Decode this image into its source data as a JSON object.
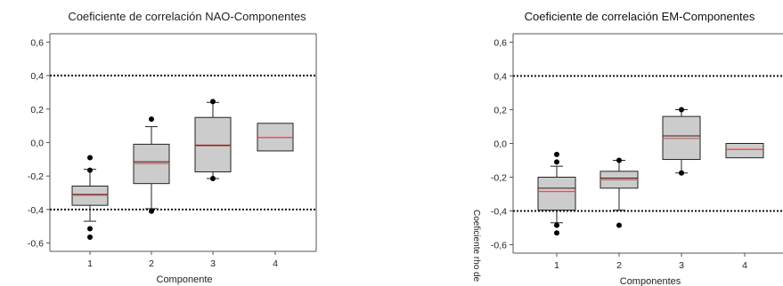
{
  "chart_data": [
    {
      "type": "box",
      "title": "Coeficiente de correlación NAO-Componentes",
      "xlabel": "Componente",
      "ylabel": "",
      "ylim": [
        -0.65,
        0.65
      ],
      "yticks": [
        "0,6",
        "0,4",
        "0,2",
        "0,0",
        "-0,2",
        "-0,4",
        "-0,6"
      ],
      "categories": [
        "1",
        "2",
        "3",
        "4"
      ],
      "reference_lines": [
        0.4,
        -0.4
      ],
      "boxes": [
        {
          "q1": -0.375,
          "median": -0.31,
          "mean": -0.315,
          "q3": -0.26,
          "whisker_low": -0.47,
          "whisker_high": -0.16,
          "outliers": [
            -0.09,
            -0.165,
            -0.515,
            -0.565
          ]
        },
        {
          "q1": -0.245,
          "median": -0.115,
          "mean": -0.125,
          "q3": -0.01,
          "whisker_low": -0.395,
          "whisker_high": 0.095,
          "outliers": [
            0.14,
            -0.41
          ]
        },
        {
          "q1": -0.175,
          "median": -0.015,
          "mean": -0.02,
          "q3": 0.15,
          "whisker_low": -0.215,
          "whisker_high": 0.24,
          "outliers": [
            0.245,
            -0.215
          ]
        },
        {
          "q1": -0.05,
          "median": 0.03,
          "mean": 0.03,
          "q3": 0.115,
          "whisker_low": null,
          "whisker_high": null,
          "outliers": []
        }
      ]
    },
    {
      "type": "box",
      "title": "Coeficiente de correlación EM-Componentes",
      "xlabel": "Componentes",
      "ylabel": "Coeficiente rho de",
      "ylim": [
        -0.65,
        0.65
      ],
      "yticks": [
        "0,6",
        "0,4",
        "0,2",
        "0,0",
        "-0,2",
        "-0,4",
        "-0,6"
      ],
      "categories": [
        "1",
        "2",
        "3",
        "4"
      ],
      "reference_lines": [
        0.4,
        -0.4
      ],
      "boxes": [
        {
          "q1": -0.395,
          "median": -0.265,
          "mean": -0.285,
          "q3": -0.2,
          "whisker_low": -0.47,
          "whisker_high": -0.135,
          "outliers": [
            -0.065,
            -0.11,
            -0.485,
            -0.53
          ]
        },
        {
          "q1": -0.265,
          "median": -0.205,
          "mean": -0.215,
          "q3": -0.165,
          "whisker_low": -0.395,
          "whisker_high": -0.1,
          "outliers": [
            -0.1,
            -0.485
          ]
        },
        {
          "q1": -0.095,
          "median": 0.045,
          "mean": 0.03,
          "q3": 0.16,
          "whisker_low": -0.175,
          "whisker_high": 0.2,
          "outliers": [
            0.2,
            -0.175
          ]
        },
        {
          "q1": -0.085,
          "median": -0.035,
          "mean": -0.035,
          "q3": 0.0,
          "whisker_low": null,
          "whisker_high": null,
          "outliers": []
        }
      ]
    }
  ],
  "colors": {
    "box_fill": "#cccccc",
    "box_stroke": "#222222",
    "mean_line": "#d9534f",
    "reference_line": "#111111"
  }
}
